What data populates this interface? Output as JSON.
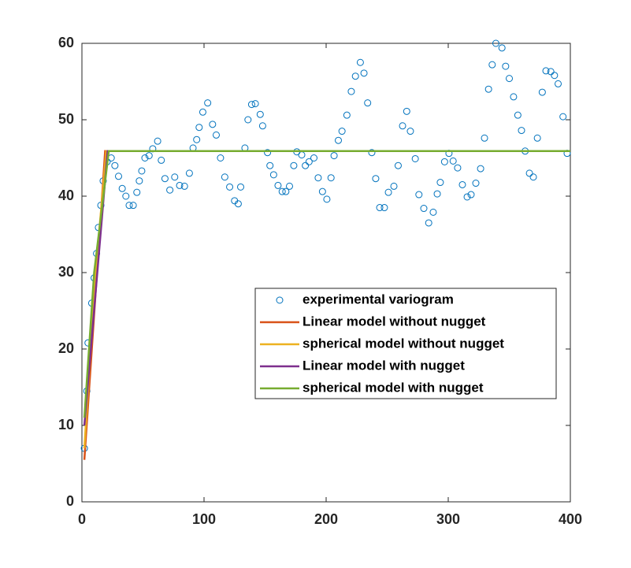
{
  "chart_data": {
    "type": "line",
    "xlim": [
      0,
      400
    ],
    "xticks": [
      0,
      100,
      200,
      300,
      400
    ],
    "ylim": [
      0,
      60
    ],
    "yticks": [
      0,
      10,
      20,
      30,
      40,
      50,
      60
    ],
    "grid": false,
    "legend": "right",
    "series": [
      {
        "name": "experimental variogram",
        "color": "#0072bd",
        "style": "markers",
        "x": [
          2,
          4,
          5,
          8,
          10,
          12,
          13.5,
          15.5,
          17.4,
          20.6,
          24,
          27,
          30,
          33,
          36,
          38.7,
          42,
          45,
          47,
          49,
          51.6,
          55,
          58,
          62,
          65,
          68,
          72,
          76,
          80,
          84,
          88,
          91,
          94,
          96,
          99,
          103,
          107,
          110,
          113.5,
          117,
          121,
          125,
          128,
          130,
          133.5,
          136,
          139,
          142,
          146,
          148,
          152,
          154,
          157,
          160.6,
          164,
          167,
          170,
          173.5,
          176,
          180,
          183,
          186,
          190,
          193.5,
          197,
          200.6,
          204,
          206.5,
          210,
          213,
          217,
          220.6,
          224,
          228,
          231,
          234,
          237.4,
          240.6,
          243.9,
          247.7,
          251,
          255.5,
          259,
          262.6,
          266,
          269,
          273,
          276,
          280,
          284,
          287.7,
          291,
          293.5,
          297,
          300.6,
          304,
          307.7,
          311.6,
          315.5,
          318.7,
          322.6,
          326.5,
          329.7,
          333,
          336,
          339,
          344,
          347,
          350,
          353.5,
          357,
          360,
          363,
          366.5,
          369.7,
          373,
          377,
          380,
          384,
          387,
          390,
          394,
          397.4
        ],
        "values": [
          7,
          14.5,
          20.8,
          26,
          29.3,
          32.5,
          35.9,
          38.8,
          42,
          44.5,
          45,
          44,
          42.6,
          41,
          40,
          38.8,
          38.8,
          40.5,
          42,
          43.3,
          45,
          45.3,
          46.2,
          47.2,
          44.7,
          42.3,
          40.8,
          42.5,
          41.4,
          41.3,
          43,
          46.3,
          47.4,
          49,
          51,
          52.2,
          49.4,
          48,
          45,
          42.5,
          41.2,
          39.4,
          39,
          41.2,
          46.3,
          50,
          52,
          52.1,
          50.7,
          49.2,
          45.7,
          44,
          42.8,
          41.4,
          40.6,
          40.6,
          41.3,
          44,
          45.8,
          45.4,
          44,
          44.5,
          45,
          42.4,
          40.6,
          39.6,
          42.4,
          45.3,
          47.3,
          48.5,
          50.6,
          53.7,
          55.7,
          57.5,
          56.1,
          52.2,
          45.7,
          42.3,
          38.5,
          38.5,
          40.5,
          41.3,
          44,
          49.2,
          51.1,
          48.5,
          44.9,
          40.2,
          38.4,
          36.5,
          37.9,
          40.3,
          41.8,
          44.5,
          45.6,
          44.6,
          43.7,
          41.5,
          39.9,
          40.2,
          41.7,
          43.6,
          47.6,
          54,
          57.2,
          60,
          59.4,
          57,
          55.4,
          53,
          50.6,
          48.6,
          45.9,
          43,
          42.5,
          47.6,
          53.6,
          56.4,
          56.3,
          55.8,
          54.7,
          50.4,
          45.6
        ]
      },
      {
        "name": "Linear model without nugget",
        "color": "#d95319",
        "style": "line",
        "x": [
          2,
          19,
          400
        ],
        "values": [
          5.5,
          45.9,
          45.9
        ]
      },
      {
        "name": "spherical model without nugget",
        "color": "#edb120",
        "style": "line",
        "x": [
          2,
          10,
          20,
          400
        ],
        "values": [
          7,
          28,
          45.9,
          45.9
        ]
      },
      {
        "name": "Linear model with nugget",
        "color": "#7e2f8e",
        "style": "line",
        "x": [
          2,
          21,
          400
        ],
        "values": [
          10,
          45.9,
          45.9
        ]
      },
      {
        "name": "spherical model with nugget",
        "color": "#77ac30",
        "style": "line",
        "x": [
          2,
          10,
          22,
          400
        ],
        "values": [
          11,
          30,
          45.9,
          45.9
        ]
      }
    ]
  }
}
